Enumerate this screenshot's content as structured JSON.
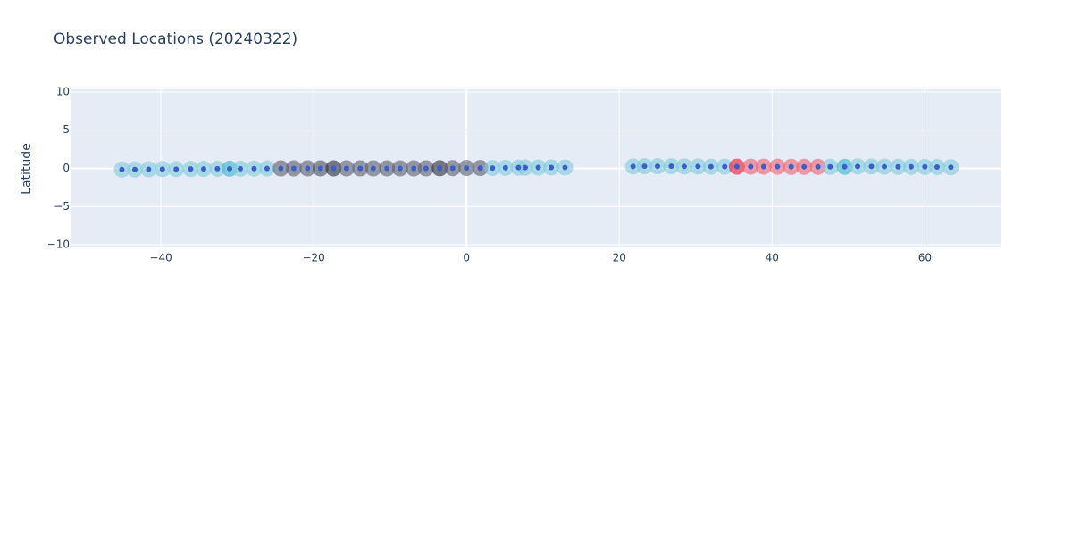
{
  "chart_data": {
    "type": "scatter",
    "title": "Observed Locations (20240322)",
    "y_label": "Latitude",
    "x": [
      -45.1,
      -43.4,
      -41.6,
      -39.8,
      -38.0,
      -36.1,
      -34.4,
      -32.6,
      -31.0,
      -29.6,
      -27.8,
      -26.1,
      -24.3,
      -22.6,
      -20.8,
      -19.1,
      -17.4,
      -15.7,
      -13.9,
      -12.2,
      -10.4,
      -8.7,
      -6.9,
      -5.3,
      -3.5,
      -1.8,
      0,
      1.8,
      3.4,
      5.1,
      6.8,
      7.7,
      9.4,
      11.1,
      12.9,
      21.8,
      23.3,
      25.0,
      26.8,
      28.5,
      30.3,
      32.0,
      33.8,
      35.4,
      37.2,
      38.9,
      40.7,
      42.5,
      44.2,
      46.0,
      47.6,
      49.5,
      51.2,
      53.0,
      54.7,
      56.5,
      58.2,
      60.0,
      61.6,
      63.4
    ],
    "y": [
      -0.15,
      -0.15,
      -0.12,
      -0.1,
      -0.1,
      -0.08,
      -0.08,
      -0.05,
      -0.05,
      -0.05,
      -0.03,
      -0.02,
      0,
      0,
      0,
      0,
      0,
      0,
      0,
      0,
      0,
      0,
      0,
      0,
      0.02,
      0.03,
      0.05,
      0.05,
      0.05,
      0.08,
      0.1,
      0.1,
      0.12,
      0.12,
      0.12,
      0.25,
      0.28,
      0.28,
      0.28,
      0.25,
      0.25,
      0.22,
      0.22,
      0.22,
      0.22,
      0.22,
      0.22,
      0.2,
      0.2,
      0.2,
      0.2,
      0.2,
      0.25,
      0.25,
      0.22,
      0.2,
      0.2,
      0.2,
      0.18,
      0.15
    ],
    "colors": [
      "#7ecbdb",
      "#7ecbdb",
      "#7ecbdb",
      "#7ecbdb",
      "#7ecbdb",
      "#7ecbdb",
      "#7ecbdb",
      "#7ecbdb",
      "#36b6cc",
      "#7ecbdb",
      "#7ecbdb",
      "#7ecbdb",
      "#5a5e6c",
      "#5a5e6c",
      "#5a5e6c",
      "#4a4e5c",
      "#262a36",
      "#5a5e6c",
      "#5a5e6c",
      "#5a5e6c",
      "#5a5e6c",
      "#5a5e6c",
      "#5a5e6c",
      "#5a5e6c",
      "#262a36",
      "#5a5e6c",
      "#5a5e6c",
      "#5a5e6c",
      "#7ecbdb",
      "#7ecbdb",
      "#7ecbdb",
      "#7ecbdb",
      "#7ecbdb",
      "#7ecbdb",
      "#7ecbdb",
      "#7ecbdb",
      "#7ecbdb",
      "#7ecbdb",
      "#7ecbdb",
      "#7ecbdb",
      "#7ecbdb",
      "#7ecbdb",
      "#7ecbdb",
      "#f0142a",
      "#f0606e",
      "#f0606e",
      "#f0606e",
      "#f0606e",
      "#f0606e",
      "#f0606e",
      "#7ecbdb",
      "#36b6cc",
      "#7ecbdb",
      "#7ecbdb",
      "#7ecbdb",
      "#7ecbdb",
      "#7ecbdb",
      "#7ecbdb",
      "#7ecbdb",
      "#7ecbdb"
    ],
    "dot_color": "#3a5fcd",
    "xlim": [
      -51.7,
      69.9
    ],
    "ylim": [
      -10.35,
      10.35
    ],
    "xticks": [
      {
        "value": -40,
        "label": "−40"
      },
      {
        "value": -20,
        "label": "−20"
      },
      0,
      20,
      40,
      60
    ],
    "yticks": [
      {
        "value": -10,
        "label": "−10"
      },
      {
        "value": -5,
        "label": "−5"
      },
      0,
      5,
      10
    ],
    "grid": true
  }
}
